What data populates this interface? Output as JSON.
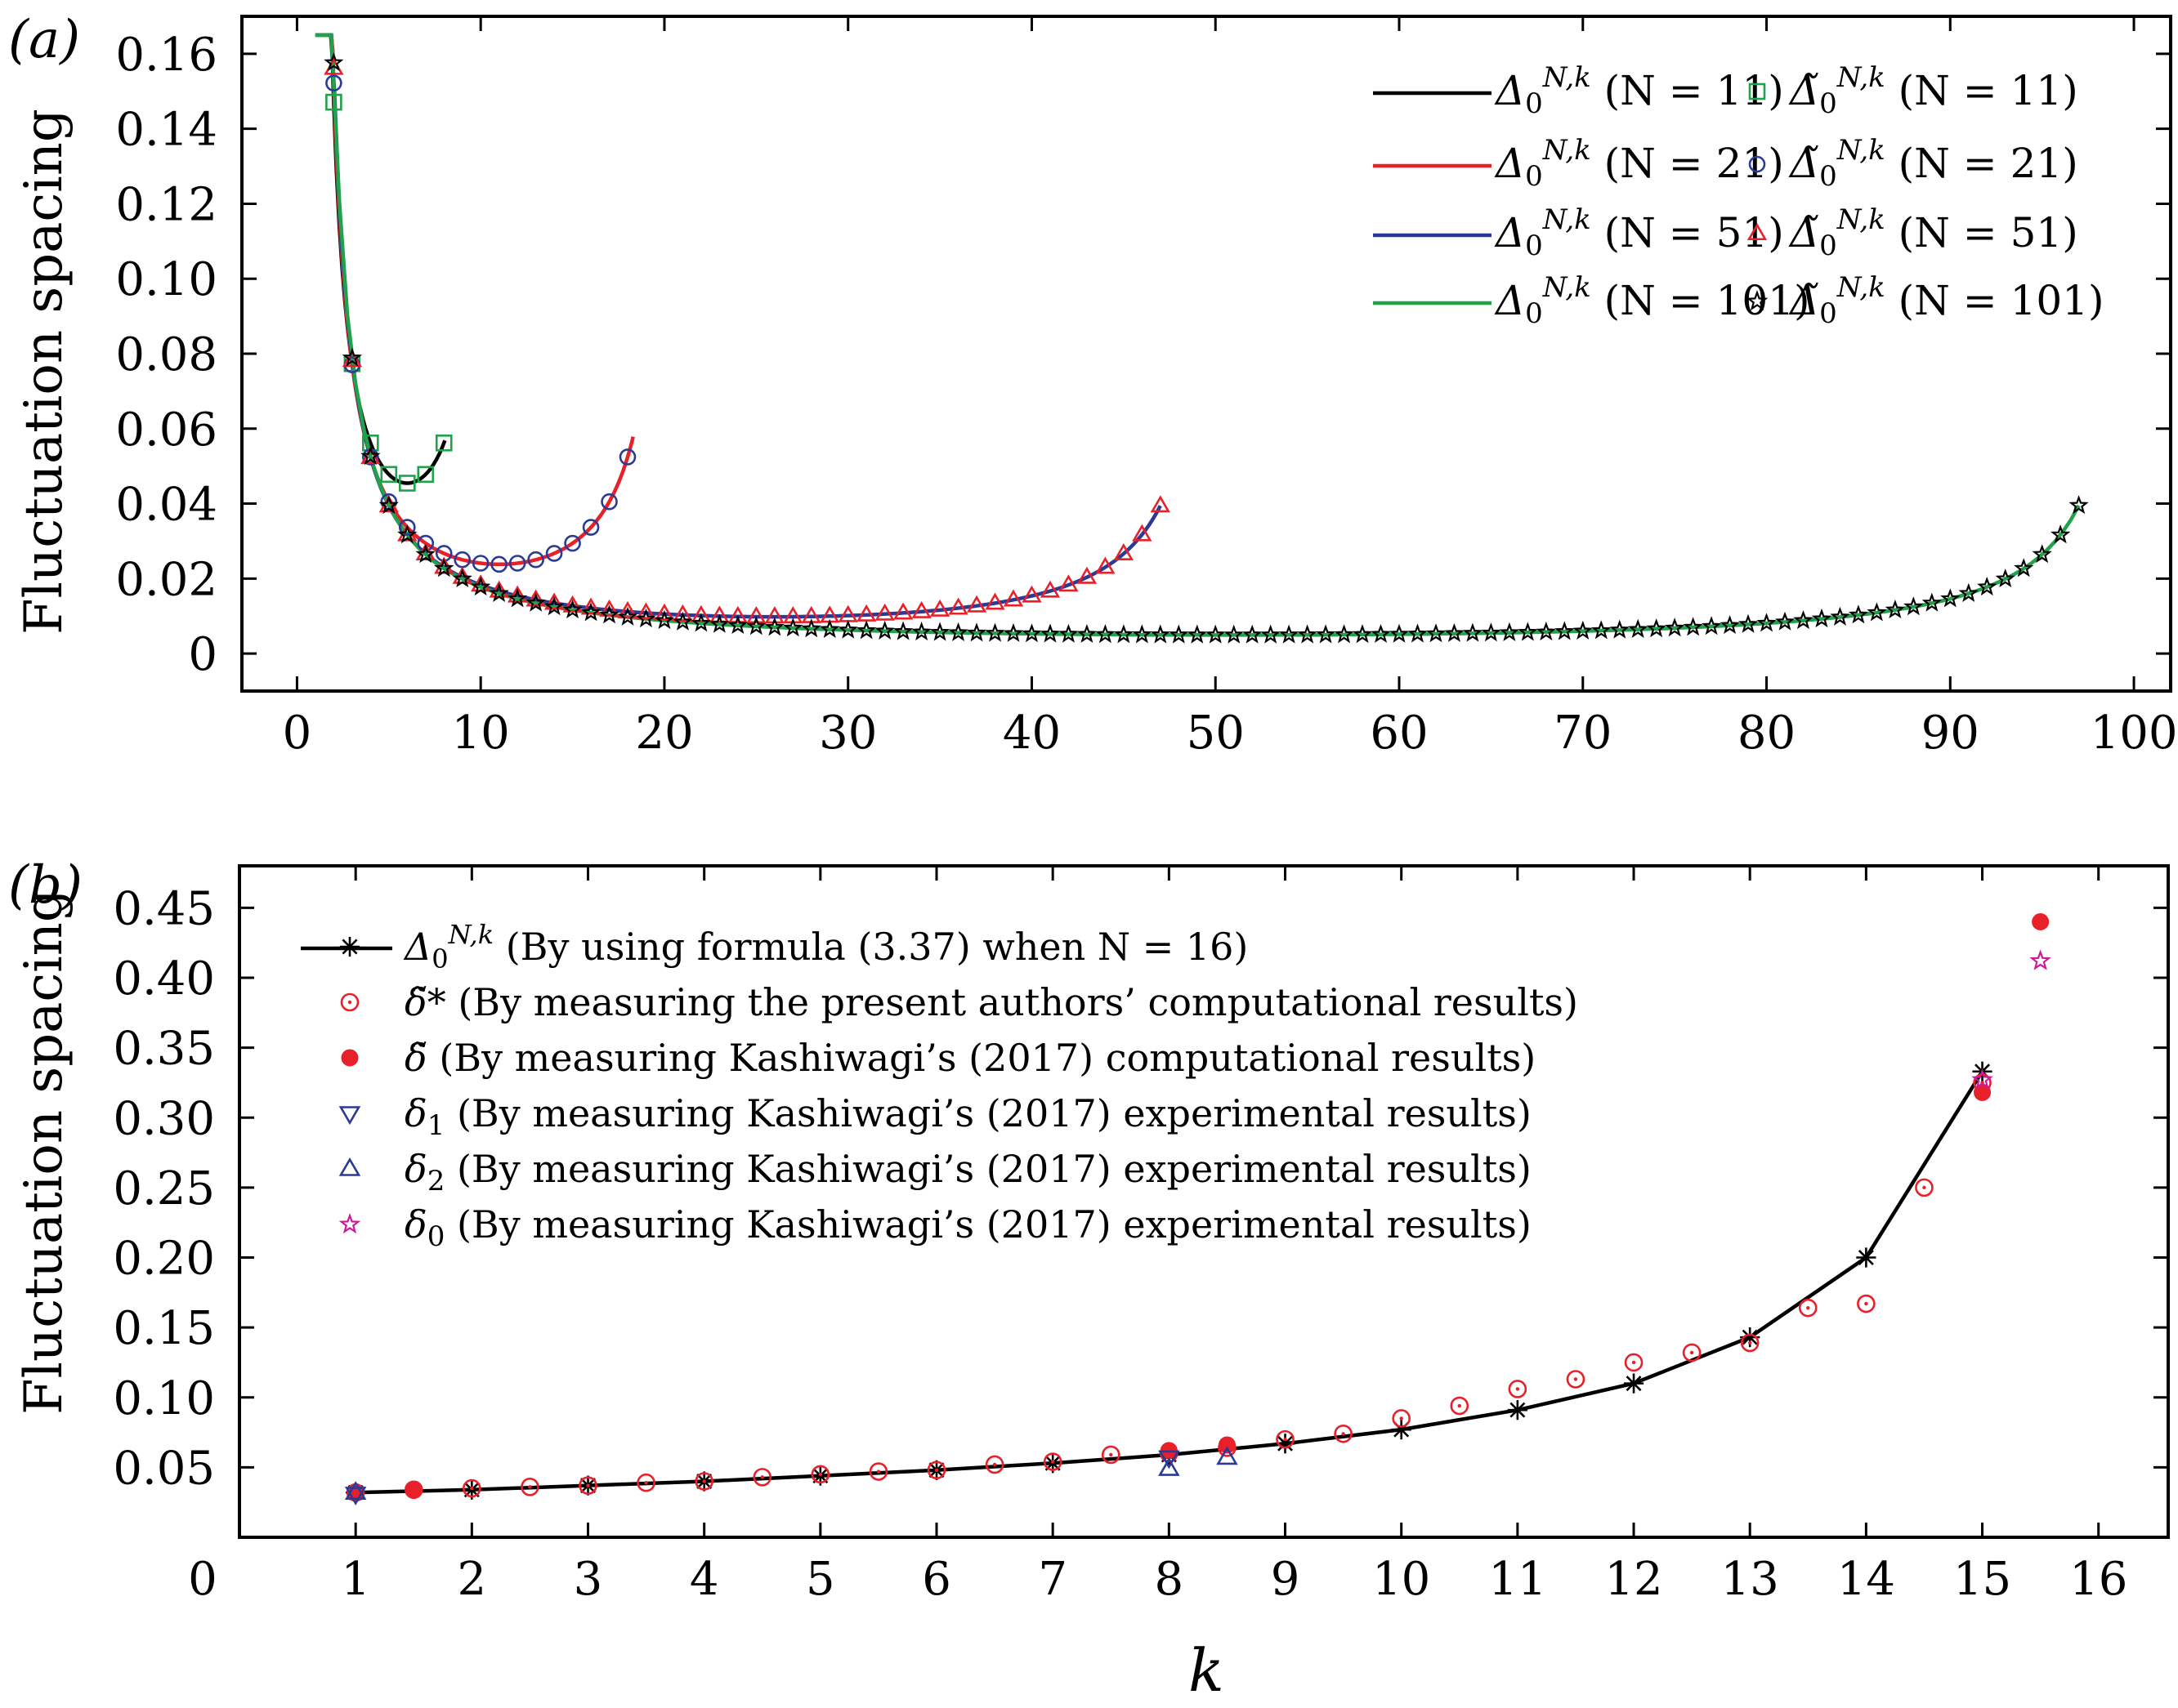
{
  "chart_data": [
    {
      "panel_label": "(a)",
      "type": "line",
      "ylabel": "Fluctuation spacing",
      "xlabel": "",
      "xlim": [
        -3,
        102
      ],
      "ylim": [
        -0.01,
        0.17
      ],
      "xticks": [
        0,
        10,
        20,
        30,
        40,
        50,
        60,
        70,
        80,
        90,
        100
      ],
      "yticks": [
        0,
        0.02,
        0.04,
        0.06,
        0.08,
        0.1,
        0.12,
        0.14,
        0.16
      ],
      "ytick_labels": [
        "0",
        "0.02",
        "0.04",
        "0.06",
        "0.08",
        "0.10",
        "0.12",
        "0.14",
        "0.16"
      ],
      "legend_position": "top-right",
      "series": [
        {
          "name": "Δ0N,k (N=11)",
          "legend_symbol": "Δ",
          "legend_sub": "0",
          "legend_sup": "N,k",
          "legend_rest": "(N = 11)",
          "kind": "line",
          "color": "#000000",
          "N": 11
        },
        {
          "name": "Δ0N,k (N=21)",
          "legend_symbol": "Δ",
          "legend_sub": "0",
          "legend_sup": "N,k",
          "legend_rest": "(N = 21)",
          "kind": "line",
          "color": "#e8202a",
          "N": 21
        },
        {
          "name": "Δ0N,k (N=51)",
          "legend_symbol": "Δ",
          "legend_sub": "0",
          "legend_sup": "N,k",
          "legend_rest": "(N = 51)",
          "kind": "line",
          "color": "#2b3a96",
          "N": 51
        },
        {
          "name": "Δ0N,k (N=101)",
          "legend_symbol": "Δ",
          "legend_sub": "0",
          "legend_sup": "N,k",
          "legend_rest": "(N = 101)",
          "kind": "line",
          "color": "#1fa24a",
          "N": 101
        },
        {
          "name": "Δ̃0N,k (N=11)",
          "legend_symbol": "Δ̃",
          "legend_sub": "0",
          "legend_sup": "N,k",
          "legend_rest": "(N = 11)",
          "kind": "marker",
          "marker": "square",
          "color": "#1fa24a",
          "N": 11
        },
        {
          "name": "Δ̃0N,k (N=21)",
          "legend_symbol": "Δ̃",
          "legend_sub": "0",
          "legend_sup": "N,k",
          "legend_rest": "(N = 21)",
          "kind": "marker",
          "marker": "circle",
          "color": "#2b3a96",
          "N": 21
        },
        {
          "name": "Δ̃0N,k (N=51)",
          "legend_symbol": "Δ̃",
          "legend_sub": "0",
          "legend_sup": "N,k",
          "legend_rest": "(N = 51)",
          "kind": "marker",
          "marker": "triangle-up",
          "color": "#e8202a",
          "N": 51
        },
        {
          "name": "Δ̃0N,k (N=101)",
          "legend_symbol": "Δ̃",
          "legend_sub": "0",
          "legend_sup": "N,k",
          "legend_rest": "(N = 101)",
          "kind": "marker",
          "marker": "star",
          "color": "#000000",
          "N": 101
        }
      ]
    },
    {
      "panel_label": "(b)",
      "type": "line",
      "ylabel": "Fluctuation spacing",
      "xlabel": "k",
      "xlim": [
        0,
        16.6
      ],
      "ylim": [
        0,
        0.48
      ],
      "xticks": [
        0,
        1,
        2,
        3,
        4,
        5,
        6,
        7,
        8,
        9,
        10,
        11,
        12,
        13,
        14,
        15,
        16
      ],
      "yticks": [
        0.05,
        0.1,
        0.15,
        0.2,
        0.25,
        0.3,
        0.35,
        0.4,
        0.45
      ],
      "ytick_labels": [
        "0.05",
        "0.10",
        "0.15",
        "0.20",
        "0.25",
        "0.30",
        "0.35",
        "0.40",
        "0.45"
      ],
      "legend_position": "top-left",
      "series": [
        {
          "name": "Δ0N,k",
          "legend_symbol": "Δ",
          "legend_sub": "0",
          "legend_sup": "N,k",
          "legend_rest": "(By using formula (3.37) when N = 16)",
          "kind": "line+marker",
          "marker": "asterisk",
          "color": "#000000",
          "x": [
            1,
            2,
            3,
            4,
            5,
            6,
            7,
            8,
            9,
            10,
            11,
            12,
            13,
            14,
            15
          ],
          "y": [
            0.032,
            0.034,
            0.037,
            0.04,
            0.044,
            0.048,
            0.053,
            0.059,
            0.067,
            0.077,
            0.091,
            0.11,
            0.143,
            0.2,
            0.333
          ]
        },
        {
          "name": "δ̃*",
          "legend_symbol": "δ̃*",
          "legend_rest": "(By measuring the present authors’ computational results)",
          "kind": "marker",
          "marker": "circle-dot",
          "color": "#e8202a",
          "x": [
            1,
            1.5,
            2,
            2.5,
            3,
            3.5,
            4,
            4.5,
            5,
            5.5,
            6,
            6.5,
            7,
            7.5,
            8,
            8.5,
            9,
            9.5,
            10,
            10.5,
            11,
            11.5,
            12,
            12.5,
            13,
            13.5,
            14,
            14.5,
            15
          ],
          "y": [
            0.032,
            0.034,
            0.035,
            0.036,
            0.037,
            0.039,
            0.04,
            0.043,
            0.045,
            0.047,
            0.048,
            0.052,
            0.054,
            0.059,
            0.06,
            0.064,
            0.07,
            0.074,
            0.085,
            0.094,
            0.106,
            0.113,
            0.125,
            0.132,
            0.139,
            0.164,
            0.167,
            0.25,
            0.325
          ]
        },
        {
          "name": "δ̃",
          "legend_symbol": "δ̃",
          "legend_rest": "(By measuring Kashiwagi’s (2017) computational results)",
          "kind": "marker",
          "marker": "filled-circle",
          "color": "#e8202a",
          "x": [
            1,
            1.5,
            8,
            8.5,
            15,
            15.5
          ],
          "y": [
            0.032,
            0.034,
            0.062,
            0.066,
            0.318,
            0.44
          ]
        },
        {
          "name": "δ1",
          "legend_symbol": "δ",
          "legend_sub": "1",
          "legend_rest": "(By measuring Kashiwagi’s (2017) experimental results)",
          "kind": "marker",
          "marker": "triangle-down",
          "color": "#2b3a96",
          "x": [
            1,
            8
          ],
          "y": [
            0.031,
            0.057
          ]
        },
        {
          "name": "δ2",
          "legend_symbol": "δ",
          "legend_sub": "2",
          "legend_rest": "(By measuring Kashiwagi’s (2017) experimental results)",
          "kind": "marker",
          "marker": "triangle-up",
          "color": "#2b3a96",
          "x": [
            1,
            8,
            8.5
          ],
          "y": [
            0.032,
            0.049,
            0.057
          ]
        },
        {
          "name": "δ0",
          "legend_symbol": "δ",
          "legend_sub": "0",
          "legend_rest": "(By measuring Kashiwagi’s (2017) experimental results)",
          "kind": "marker",
          "marker": "star",
          "color": "#d0199a",
          "x": [
            15,
            15.5
          ],
          "y": [
            0.327,
            0.412
          ]
        }
      ]
    }
  ]
}
